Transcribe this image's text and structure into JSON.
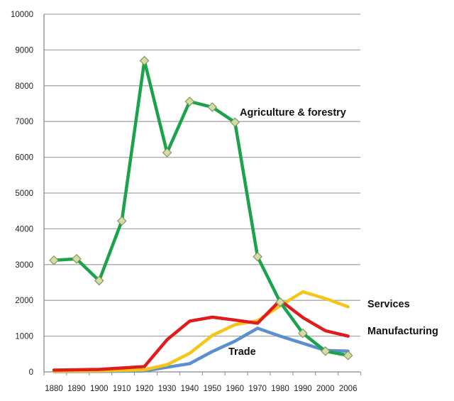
{
  "chart_data": {
    "type": "line",
    "title": "",
    "xlabel": "",
    "ylabel": "",
    "x": [
      "1880",
      "1890",
      "1900",
      "1910",
      "1920",
      "1930",
      "1940",
      "1950",
      "1960",
      "1970",
      "1980",
      "1990",
      "2000",
      "2006"
    ],
    "ylim": [
      0,
      10000
    ],
    "yticks": [
      0,
      1000,
      2000,
      3000,
      4000,
      5000,
      6000,
      7000,
      8000,
      9000,
      10000
    ],
    "grid": true,
    "legend": "none (direct labels on lines)",
    "series": [
      {
        "name": "Agriculture & forestry",
        "color": "#1aa34a",
        "markers": true,
        "values": [
          3120,
          3160,
          2550,
          4220,
          8700,
          6130,
          7560,
          7400,
          6980,
          3220,
          1950,
          1080,
          580,
          460
        ]
      },
      {
        "name": "Manufacturing",
        "color": "#e01b1b",
        "markers": false,
        "values": [
          50,
          60,
          70,
          110,
          150,
          900,
          1420,
          1530,
          1450,
          1360,
          2000,
          1520,
          1150,
          1000
        ]
      },
      {
        "name": "Services",
        "color": "#f5c518",
        "markers": false,
        "values": [
          20,
          25,
          30,
          40,
          60,
          200,
          520,
          1020,
          1320,
          1430,
          1850,
          2240,
          2050,
          1820
        ]
      },
      {
        "name": "Trade",
        "color": "#5b8fd0",
        "markers": false,
        "values": [
          10,
          12,
          15,
          20,
          30,
          130,
          230,
          570,
          860,
          1220,
          1000,
          800,
          600,
          580
        ]
      }
    ],
    "annotations": [
      {
        "text": "Agriculture & forestry",
        "series": "Agriculture & forestry"
      },
      {
        "text": "Services",
        "series": "Services"
      },
      {
        "text": "Manufacturing",
        "series": "Manufacturing"
      },
      {
        "text": "Trade",
        "series": "Trade"
      }
    ]
  }
}
